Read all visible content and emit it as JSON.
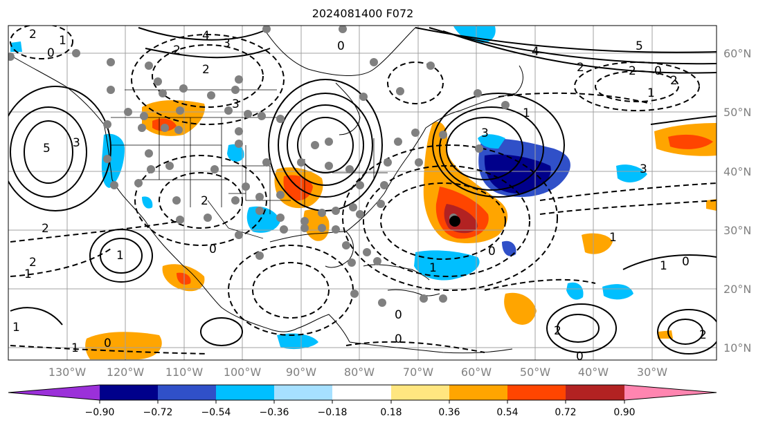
{
  "title": "2024081400 F072",
  "map": {
    "lon_labels": [
      "130°W",
      "120°W",
      "110°W",
      "100°W",
      "90°W",
      "80°W",
      "70°W",
      "60°W",
      "50°W",
      "40°W",
      "30°W"
    ],
    "lat_labels": [
      "60°N",
      "50°N",
      "40°N",
      "30°N",
      "20°N",
      "10°N"
    ],
    "contour_labels": [
      "2",
      "4",
      "3",
      "2",
      "2",
      "0",
      "1",
      "5",
      "3",
      "0",
      "2",
      "1",
      "0",
      "1",
      "2",
      "3",
      "2",
      "0",
      "1",
      "1",
      "0",
      "0",
      "1",
      "1",
      "0",
      "2",
      "0",
      "1",
      "2",
      "1",
      "0",
      "2",
      "5",
      "4",
      "3",
      "3",
      "1",
      "2",
      "2",
      "0"
    ]
  },
  "colorbar": {
    "ticks": [
      "−0.90",
      "−0.72",
      "−0.54",
      "−0.36",
      "−0.18",
      "0.18",
      "0.36",
      "0.54",
      "0.72",
      "0.90"
    ],
    "colors": {
      "below_min": "#9b30d9",
      "b1": "#00008b",
      "b2": "#3050c8",
      "b3": "#00bfff",
      "b4": "#a6e0ff",
      "b5": "#ffffff",
      "b6": "#ffe680",
      "b7": "#ffa500",
      "b8": "#ff4500",
      "b9": "#b22222",
      "above_max": "#ff85b0"
    }
  }
}
